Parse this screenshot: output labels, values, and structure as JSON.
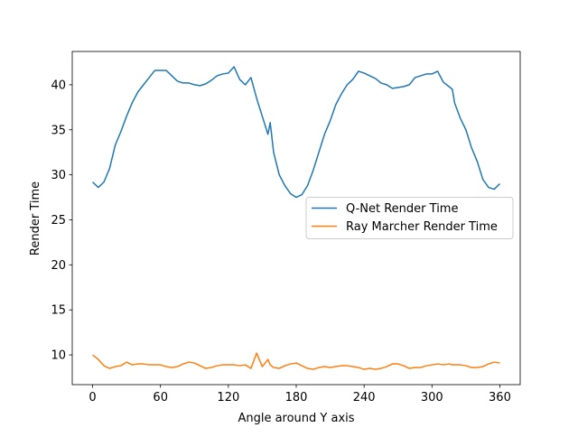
{
  "chart_data": {
    "type": "line",
    "xlabel": "Angle around Y axis",
    "ylabel": "Render Time",
    "x": [
      0,
      5,
      10,
      15,
      20,
      25,
      30,
      35,
      40,
      45,
      50,
      55,
      60,
      65,
      70,
      75,
      80,
      85,
      90,
      95,
      100,
      105,
      110,
      115,
      120,
      125,
      130,
      135,
      140,
      145,
      150,
      155,
      157,
      160,
      165,
      170,
      175,
      180,
      185,
      190,
      195,
      200,
      205,
      210,
      215,
      220,
      225,
      230,
      235,
      240,
      245,
      250,
      255,
      260,
      265,
      270,
      275,
      280,
      285,
      290,
      295,
      300,
      305,
      310,
      315,
      318,
      320,
      325,
      330,
      335,
      340,
      345,
      350,
      355,
      360
    ],
    "series": [
      {
        "name": "Q-Net Render Time",
        "color": "#1f77b4",
        "values": [
          29.2,
          28.6,
          29.2,
          30.7,
          33.3,
          34.8,
          36.5,
          38.0,
          39.2,
          40.0,
          40.8,
          41.6,
          41.6,
          41.6,
          41.0,
          40.4,
          40.2,
          40.2,
          40.0,
          39.9,
          40.1,
          40.5,
          41.0,
          41.2,
          41.3,
          42.0,
          40.6,
          40.0,
          40.8,
          38.5,
          36.5,
          34.5,
          35.8,
          32.5,
          30.0,
          28.8,
          27.9,
          27.5,
          27.8,
          28.8,
          30.5,
          32.5,
          34.5,
          36.0,
          37.8,
          39.0,
          40.0,
          40.6,
          41.5,
          41.3,
          41.0,
          40.7,
          40.2,
          40.0,
          39.6,
          39.7,
          39.8,
          40.0,
          40.8,
          41.0,
          41.2,
          41.2,
          41.5,
          40.3,
          39.8,
          39.5,
          38.0,
          36.3,
          35.0,
          33.0,
          31.5,
          29.5,
          28.6,
          28.4,
          29.0
        ]
      },
      {
        "name": "Ray Marcher Render Time",
        "color": "#ff7f0e",
        "values": [
          10.0,
          9.5,
          8.8,
          8.5,
          8.7,
          8.8,
          9.2,
          8.9,
          9.0,
          9.0,
          8.9,
          8.9,
          8.9,
          8.7,
          8.6,
          8.7,
          9.0,
          9.2,
          9.1,
          8.8,
          8.5,
          8.6,
          8.8,
          8.9,
          8.9,
          8.9,
          8.8,
          8.9,
          8.5,
          10.2,
          8.7,
          9.5,
          8.9,
          8.6,
          8.5,
          8.8,
          9.0,
          9.1,
          8.8,
          8.5,
          8.4,
          8.6,
          8.7,
          8.6,
          8.7,
          8.8,
          8.8,
          8.7,
          8.6,
          8.4,
          8.5,
          8.4,
          8.5,
          8.7,
          9.0,
          9.0,
          8.8,
          8.5,
          8.6,
          8.6,
          8.8,
          8.9,
          9.0,
          8.9,
          9.0,
          8.9,
          8.9,
          8.9,
          8.8,
          8.6,
          8.6,
          8.7,
          9.0,
          9.2,
          9.1
        ]
      }
    ],
    "xlim": [
      -18,
      378
    ],
    "xticks": [
      0,
      60,
      120,
      180,
      240,
      300,
      360
    ],
    "ylim": [
      6.7,
      43.7
    ],
    "yticks": [
      10,
      15,
      20,
      25,
      30,
      35,
      40
    ],
    "legend": "center right"
  }
}
